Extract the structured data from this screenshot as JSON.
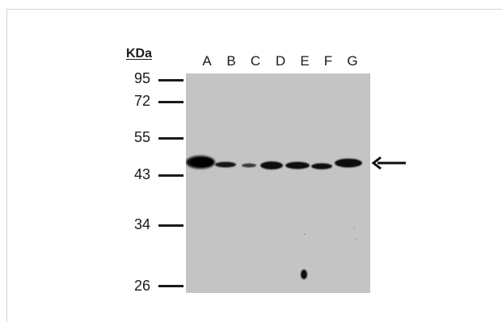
{
  "blot": {
    "unit_label": "KDa",
    "lanes": [
      "A",
      "B",
      "C",
      "D",
      "E",
      "F",
      "G"
    ],
    "markers": [
      "95",
      "72",
      "55",
      "43",
      "34",
      "26"
    ],
    "band_color": "#0d0d0d",
    "membrane_color": "#c4c4c4"
  },
  "icons": {
    "band_arrow": "left-arrow-icon"
  }
}
